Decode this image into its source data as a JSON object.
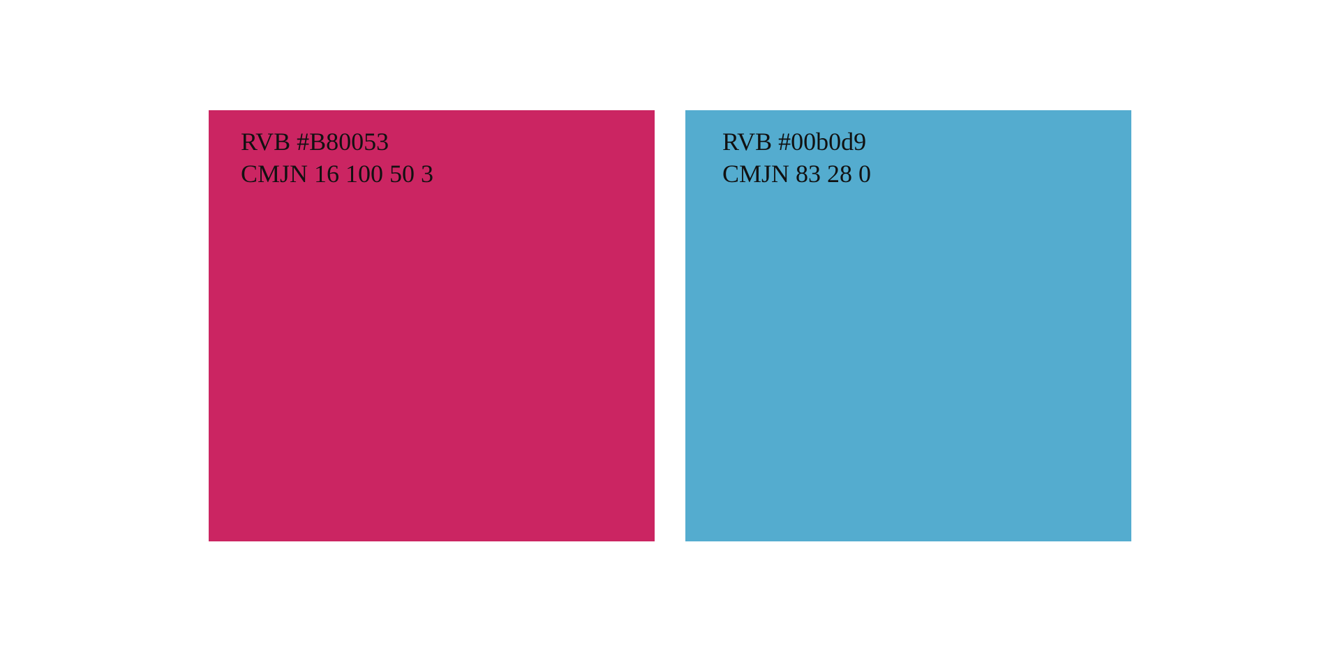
{
  "swatches": [
    {
      "color": "#cb2562",
      "lines": [
        "RVB #B80053",
        "CMJN 16 100 50 3"
      ]
    },
    {
      "color": "#54accf",
      "lines": [
        "RVB #00b0d9",
        "CMJN 83 28 0"
      ]
    }
  ]
}
